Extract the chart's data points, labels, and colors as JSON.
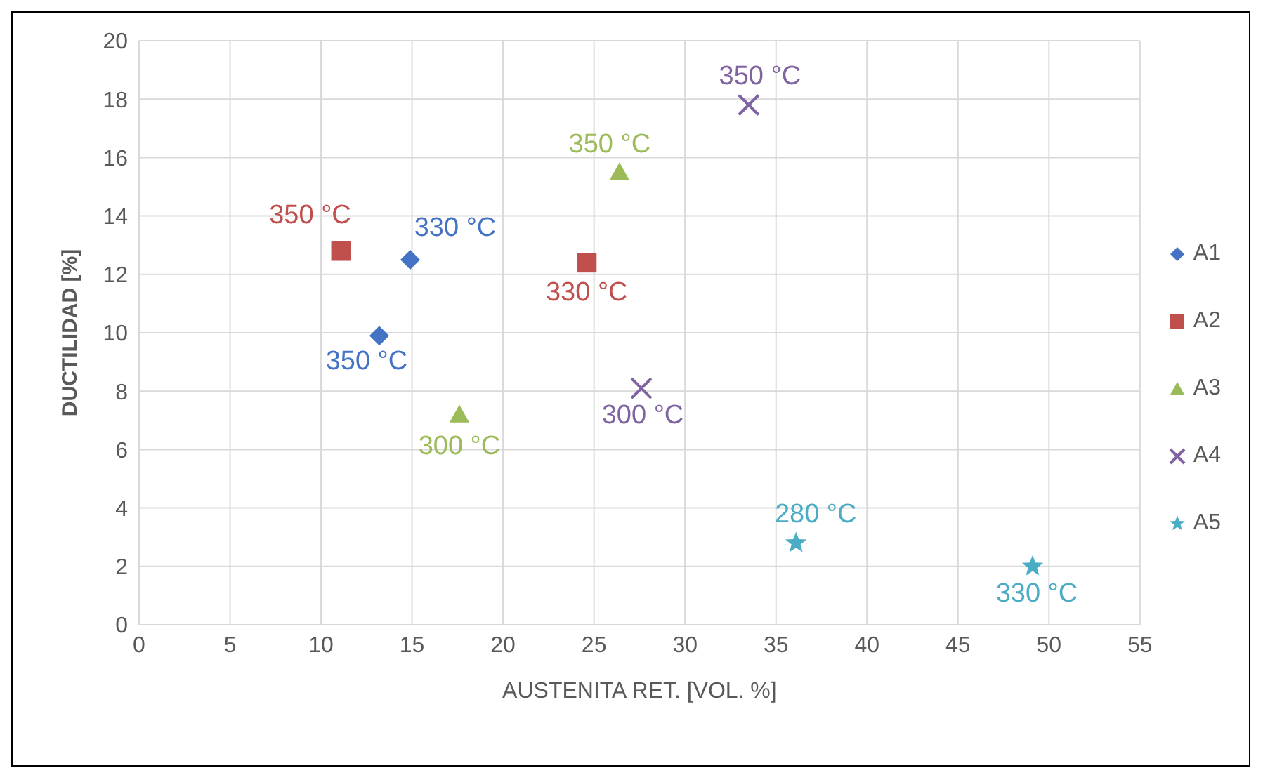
{
  "chart_data": {
    "type": "scatter",
    "xlabel": "AUSTENITA RET. [VOL. %]",
    "ylabel": "DUCTILIDAD [%]",
    "xlim": [
      0,
      55
    ],
    "xticks": [
      0,
      5,
      10,
      15,
      20,
      25,
      30,
      35,
      40,
      45,
      50,
      55
    ],
    "ylim": [
      0,
      20
    ],
    "yticks": [
      0,
      2,
      4,
      6,
      8,
      10,
      12,
      14,
      16,
      18,
      20
    ],
    "grid": true,
    "legend": "right",
    "series": [
      {
        "name": "A1",
        "color": "#4472c4",
        "marker": "diamond",
        "x": [
          13.2,
          14.9
        ],
        "values": [
          9.9,
          12.5
        ]
      },
      {
        "name": "A2",
        "color": "#c0504d",
        "marker": "square",
        "x": [
          11.1,
          24.6
        ],
        "values": [
          12.8,
          12.4
        ]
      },
      {
        "name": "A3",
        "color": "#9bbb59",
        "marker": "triangle",
        "x": [
          17.6,
          26.4
        ],
        "values": [
          7.2,
          15.5
        ]
      },
      {
        "name": "A4",
        "color": "#8064a2",
        "marker": "cross",
        "x": [
          27.6,
          33.5
        ],
        "values": [
          8.1,
          17.8
        ]
      },
      {
        "name": "A5",
        "color": "#4bacc6",
        "marker": "star",
        "x": [
          36.1,
          49.1
        ],
        "values": [
          2.8,
          2.0
        ]
      }
    ],
    "annotations": [
      {
        "text": "350 °C",
        "x": 13.2,
        "y": 9.9
      },
      {
        "text": "330 °C",
        "x": 14.9,
        "y": 12.5
      },
      {
        "text": "350 °C",
        "x": 11.1,
        "y": 12.8
      },
      {
        "text": "330 °C",
        "x": 24.6,
        "y": 12.4
      },
      {
        "text": "300 °C",
        "x": 17.6,
        "y": 7.2
      },
      {
        "text": "350 °C",
        "x": 26.4,
        "y": 15.5
      },
      {
        "text": "300 °C",
        "x": 27.6,
        "y": 8.1
      },
      {
        "text": "350 °C",
        "x": 33.5,
        "y": 17.8
      },
      {
        "text": "280 °C",
        "x": 36.1,
        "y": 2.8
      },
      {
        "text": "330 °C",
        "x": 49.1,
        "y": 2.0
      }
    ]
  }
}
